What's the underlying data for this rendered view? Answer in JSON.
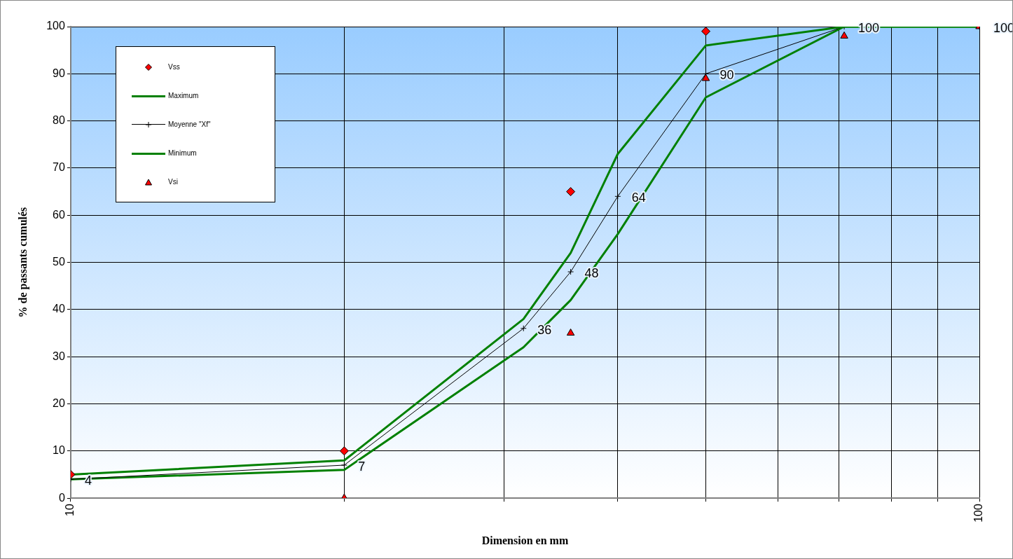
{
  "chart_data": {
    "type": "line",
    "xlabel": "Dimension en mm",
    "ylabel": "% de passants cumulés",
    "log": "x",
    "xlim": [
      10,
      100
    ],
    "xticks": [
      10,
      {
        "value": 20,
        "label": null
      },
      {
        "value": 30,
        "label": null
      },
      {
        "value": 40,
        "label": null
      },
      {
        "value": 50,
        "label": null
      },
      {
        "value": 60,
        "label": null
      },
      {
        "value": 70,
        "label": null
      },
      {
        "value": 80,
        "label": null
      },
      {
        "value": 90,
        "label": null
      },
      100
    ],
    "ylim": [
      0,
      100
    ],
    "yticks": [
      0,
      10,
      20,
      30,
      40,
      50,
      60,
      70,
      80,
      90,
      100
    ],
    "grid": true,
    "legend": "top left",
    "series": [
      {
        "name": "Vss",
        "type": "scatter",
        "marker": "diamond",
        "color": "#ff0000",
        "x": [
          10,
          20,
          35.5,
          50
        ],
        "values": [
          5,
          10,
          65,
          99
        ]
      },
      {
        "name": "Maximum",
        "type": "line",
        "marker": "none",
        "color": "#008000",
        "x": [
          10,
          20,
          31.5,
          35.5,
          40,
          50,
          71,
          100
        ],
        "values": [
          5,
          8,
          38,
          52,
          73,
          96,
          100,
          100
        ]
      },
      {
        "name": "Moyenne \"Xf\"",
        "type": "line",
        "marker": "cross",
        "color": "#000000",
        "x": [
          10,
          20,
          31.5,
          35.5,
          40,
          50,
          71,
          100
        ],
        "values": [
          4,
          7,
          36,
          48,
          64,
          90,
          100,
          100
        ],
        "value_labels": [
          "4",
          "7",
          "36",
          "48",
          "64",
          "90",
          "100",
          "100"
        ]
      },
      {
        "name": "Minimum",
        "type": "line",
        "marker": "none",
        "color": "#008000",
        "x": [
          10,
          20,
          31.5,
          35.5,
          40,
          50,
          71,
          100
        ],
        "values": [
          4,
          6,
          32,
          42,
          56,
          85,
          100,
          100
        ]
      },
      {
        "name": "Vsi",
        "type": "scatter",
        "marker": "triangle",
        "color": "#ff0000",
        "x": [
          20,
          35.5,
          50,
          71,
          100
        ],
        "values": [
          0,
          35,
          89,
          98,
          100
        ]
      }
    ]
  }
}
